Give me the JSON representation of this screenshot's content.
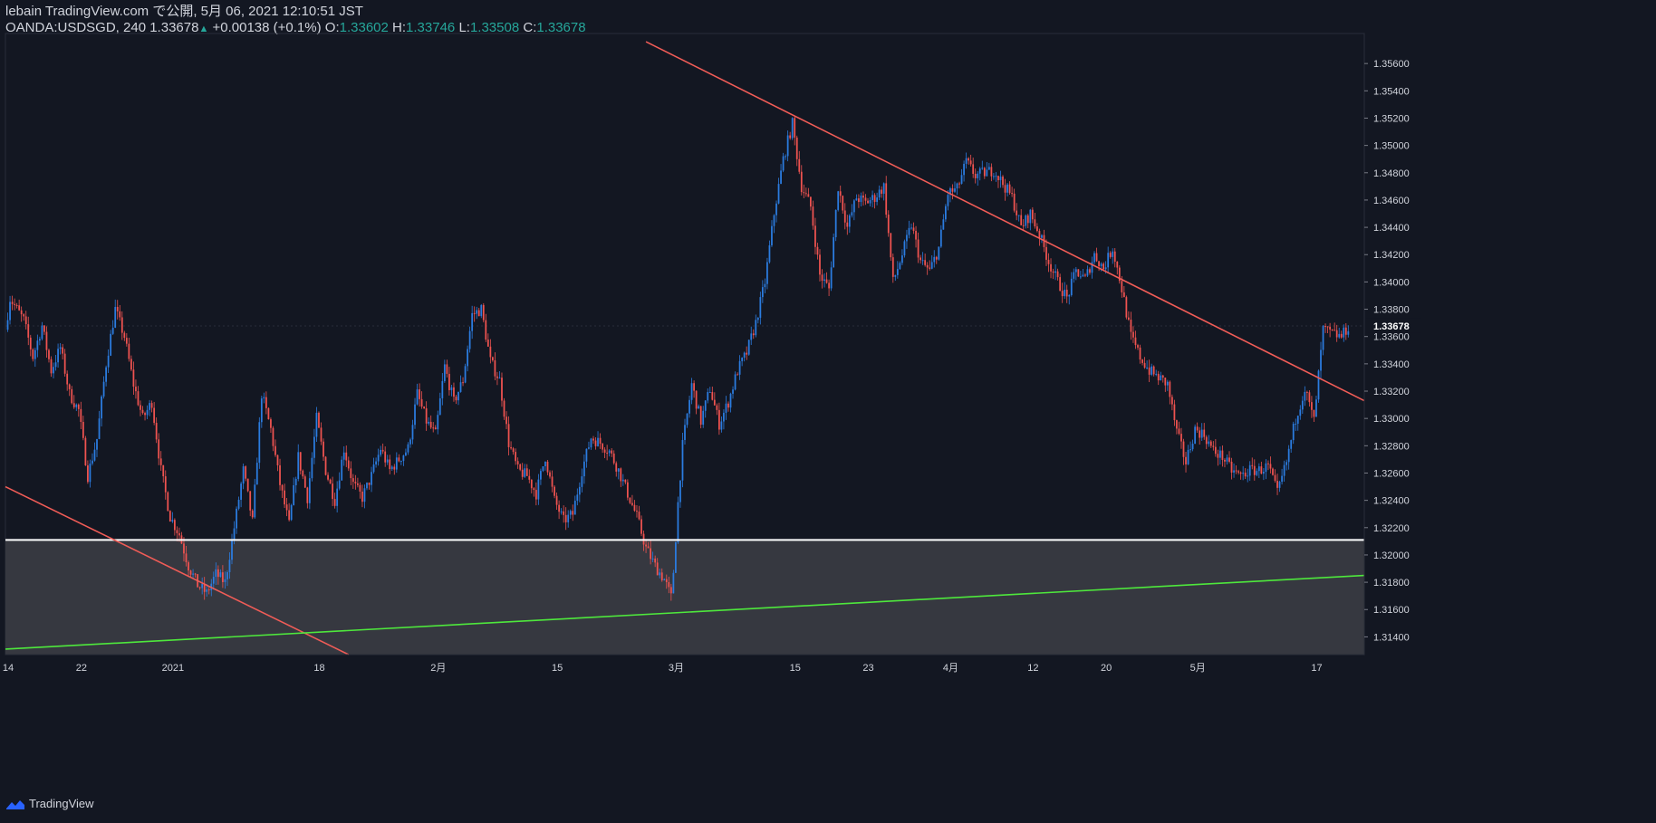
{
  "header": {
    "publish_line": "lebain TradingView.com で公開, 5月 06, 2021 12:10:51 JST",
    "symbol": "OANDA:USDSGD, 240",
    "last": "1.33678",
    "arrow": "▲",
    "change": "+0.00138 (+0.1%)",
    "o_label": "O:",
    "o_value": "1.33602",
    "h_label": "H:",
    "h_value": "1.33746",
    "l_label": "L:",
    "l_value": "1.33508",
    "c_label": "C:",
    "c_value": "1.33678"
  },
  "brand": {
    "label": "TradingView"
  },
  "colors": {
    "background": "#131722",
    "up": "#2b7ce0",
    "down": "#ef5350",
    "trendline": "#f05c57",
    "support": "#ffffff",
    "green_line": "#4ee83c",
    "zone": "#363840",
    "axis_text": "#d1d4dc"
  },
  "chart_data": {
    "type": "candlestick",
    "symbol": "OANDA:USDSGD",
    "interval": "240",
    "ylim": [
      1.3127,
      1.3582
    ],
    "y_ticks": [
      "1.35600",
      "1.35400",
      "1.35200",
      "1.35000",
      "1.34800",
      "1.34600",
      "1.34400",
      "1.34200",
      "1.34000",
      "1.33800",
      "1.33600",
      "1.33400",
      "1.33200",
      "1.33000",
      "1.32800",
      "1.32600",
      "1.32400",
      "1.32200",
      "1.32000",
      "1.31800",
      "1.31600",
      "1.31400"
    ],
    "last_price_label": "1.33678",
    "x_ticks": [
      {
        "label": "14",
        "t": 0.3
      },
      {
        "label": "22",
        "t": 8.3
      },
      {
        "label": "2021",
        "t": 18.3
      },
      {
        "label": "18",
        "t": 34.3
      },
      {
        "label": "2月",
        "t": 47.3
      },
      {
        "label": "15",
        "t": 60.3
      },
      {
        "label": "3月",
        "t": 73.3
      },
      {
        "label": "15",
        "t": 86.3
      },
      {
        "label": "23",
        "t": 94.3
      },
      {
        "label": "4月",
        "t": 103.3
      },
      {
        "label": "12",
        "t": 112.3
      },
      {
        "label": "20",
        "t": 120.3
      },
      {
        "label": "5月",
        "t": 130.3
      },
      {
        "label": "17",
        "t": 143.3
      }
    ],
    "path_points": [
      [
        0,
        1.3365
      ],
      [
        0.5,
        1.3388
      ],
      [
        2,
        1.3372
      ],
      [
        3,
        1.3345
      ],
      [
        4,
        1.3368
      ],
      [
        5,
        1.3335
      ],
      [
        6,
        1.3352
      ],
      [
        7,
        1.3318
      ],
      [
        8,
        1.3306
      ],
      [
        9,
        1.3258
      ],
      [
        10,
        1.3285
      ],
      [
        11,
        1.334
      ],
      [
        12,
        1.338
      ],
      [
        13,
        1.336
      ],
      [
        14,
        1.3325
      ],
      [
        15,
        1.33
      ],
      [
        16,
        1.3312
      ],
      [
        17,
        1.3262
      ],
      [
        18,
        1.3228
      ],
      [
        19,
        1.3215
      ],
      [
        20,
        1.3192
      ],
      [
        21,
        1.3178
      ],
      [
        22,
        1.3172
      ],
      [
        23,
        1.3186
      ],
      [
        24,
        1.318
      ],
      [
        25,
        1.322
      ],
      [
        26,
        1.3262
      ],
      [
        27,
        1.3224
      ],
      [
        28,
        1.3318
      ],
      [
        29,
        1.3292
      ],
      [
        30,
        1.3252
      ],
      [
        31,
        1.3222
      ],
      [
        32,
        1.3272
      ],
      [
        33,
        1.3242
      ],
      [
        34,
        1.33
      ],
      [
        35,
        1.3262
      ],
      [
        36,
        1.324
      ],
      [
        37,
        1.3278
      ],
      [
        38,
        1.3252
      ],
      [
        39,
        1.3242
      ],
      [
        40,
        1.3258
      ],
      [
        41,
        1.3278
      ],
      [
        42,
        1.3262
      ],
      [
        43,
        1.327
      ],
      [
        44,
        1.3278
      ],
      [
        45,
        1.3318
      ],
      [
        46,
        1.3298
      ],
      [
        47,
        1.3288
      ],
      [
        48,
        1.3338
      ],
      [
        49,
        1.3312
      ],
      [
        50,
        1.3328
      ],
      [
        51,
        1.3376
      ],
      [
        52,
        1.338
      ],
      [
        53,
        1.3342
      ],
      [
        54,
        1.3328
      ],
      [
        55,
        1.3282
      ],
      [
        56,
        1.3262
      ],
      [
        57,
        1.3258
      ],
      [
        58,
        1.3245
      ],
      [
        59,
        1.3272
      ],
      [
        60,
        1.324
      ],
      [
        61,
        1.3225
      ],
      [
        62,
        1.323
      ],
      [
        63,
        1.3262
      ],
      [
        64,
        1.3286
      ],
      [
        65,
        1.3282
      ],
      [
        66,
        1.3276
      ],
      [
        67,
        1.3262
      ],
      [
        68,
        1.3245
      ],
      [
        69,
        1.3228
      ],
      [
        70,
        1.3205
      ],
      [
        71,
        1.3192
      ],
      [
        72,
        1.3182
      ],
      [
        72.8,
        1.3168
      ],
      [
        73.5,
        1.3238
      ],
      [
        74,
        1.328
      ],
      [
        75,
        1.3325
      ],
      [
        76,
        1.3298
      ],
      [
        77,
        1.3322
      ],
      [
        78,
        1.3296
      ],
      [
        79,
        1.3312
      ],
      [
        80,
        1.3335
      ],
      [
        81,
        1.3348
      ],
      [
        82,
        1.337
      ],
      [
        83,
        1.34
      ],
      [
        84,
        1.345
      ],
      [
        85,
        1.349
      ],
      [
        86,
        1.3516
      ],
      [
        87,
        1.347
      ],
      [
        88,
        1.3455
      ],
      [
        89,
        1.3405
      ],
      [
        90,
        1.3395
      ],
      [
        91,
        1.347
      ],
      [
        92,
        1.344
      ],
      [
        93,
        1.3462
      ],
      [
        94,
        1.3458
      ],
      [
        95,
        1.3462
      ],
      [
        96,
        1.347
      ],
      [
        97,
        1.34
      ],
      [
        98,
        1.342
      ],
      [
        99,
        1.3442
      ],
      [
        100,
        1.3415
      ],
      [
        101,
        1.3408
      ],
      [
        102,
        1.3425
      ],
      [
        103,
        1.3465
      ],
      [
        104,
        1.3468
      ],
      [
        105,
        1.3488
      ],
      [
        106,
        1.3478
      ],
      [
        107,
        1.348
      ],
      [
        108,
        1.3482
      ],
      [
        109,
        1.3472
      ],
      [
        110,
        1.3462
      ],
      [
        111,
        1.344
      ],
      [
        112,
        1.345
      ],
      [
        113,
        1.3435
      ],
      [
        114,
        1.3415
      ],
      [
        115,
        1.34
      ],
      [
        116,
        1.3388
      ],
      [
        117,
        1.3408
      ],
      [
        118,
        1.3402
      ],
      [
        119,
        1.342
      ],
      [
        120,
        1.341
      ],
      [
        121,
        1.3425
      ],
      [
        122,
        1.3395
      ],
      [
        123,
        1.336
      ],
      [
        124,
        1.3345
      ],
      [
        125,
        1.3335
      ],
      [
        126,
        1.333
      ],
      [
        127,
        1.3325
      ],
      [
        128,
        1.329
      ],
      [
        129,
        1.3268
      ],
      [
        130,
        1.3292
      ],
      [
        131,
        1.3288
      ],
      [
        132,
        1.3276
      ],
      [
        133,
        1.3272
      ],
      [
        134,
        1.3262
      ],
      [
        135,
        1.3258
      ],
      [
        136,
        1.3262
      ],
      [
        137,
        1.3262
      ],
      [
        138,
        1.3265
      ],
      [
        139,
        1.3245
      ],
      [
        140,
        1.3268
      ],
      [
        141,
        1.33
      ],
      [
        142,
        1.3322
      ],
      [
        143,
        1.3298
      ],
      [
        144,
        1.3365
      ],
      [
        145,
        1.3362
      ],
      [
        146,
        1.336
      ],
      [
        146.8,
        1.33678
      ]
    ],
    "support_level": 1.3211,
    "trendlines": [
      {
        "name": "upper-trendline",
        "kind": "resistance",
        "from": [
          70,
          1.3576
        ],
        "to": [
          148.5,
          1.3313
        ]
      },
      {
        "name": "lower-trendline",
        "kind": "resistance",
        "from": [
          0,
          1.325
        ],
        "to": [
          37.5,
          1.3127
        ]
      },
      {
        "name": "green-trendline",
        "kind": "support",
        "from": [
          0,
          1.3131
        ],
        "to": [
          148.5,
          1.3185
        ]
      }
    ]
  }
}
